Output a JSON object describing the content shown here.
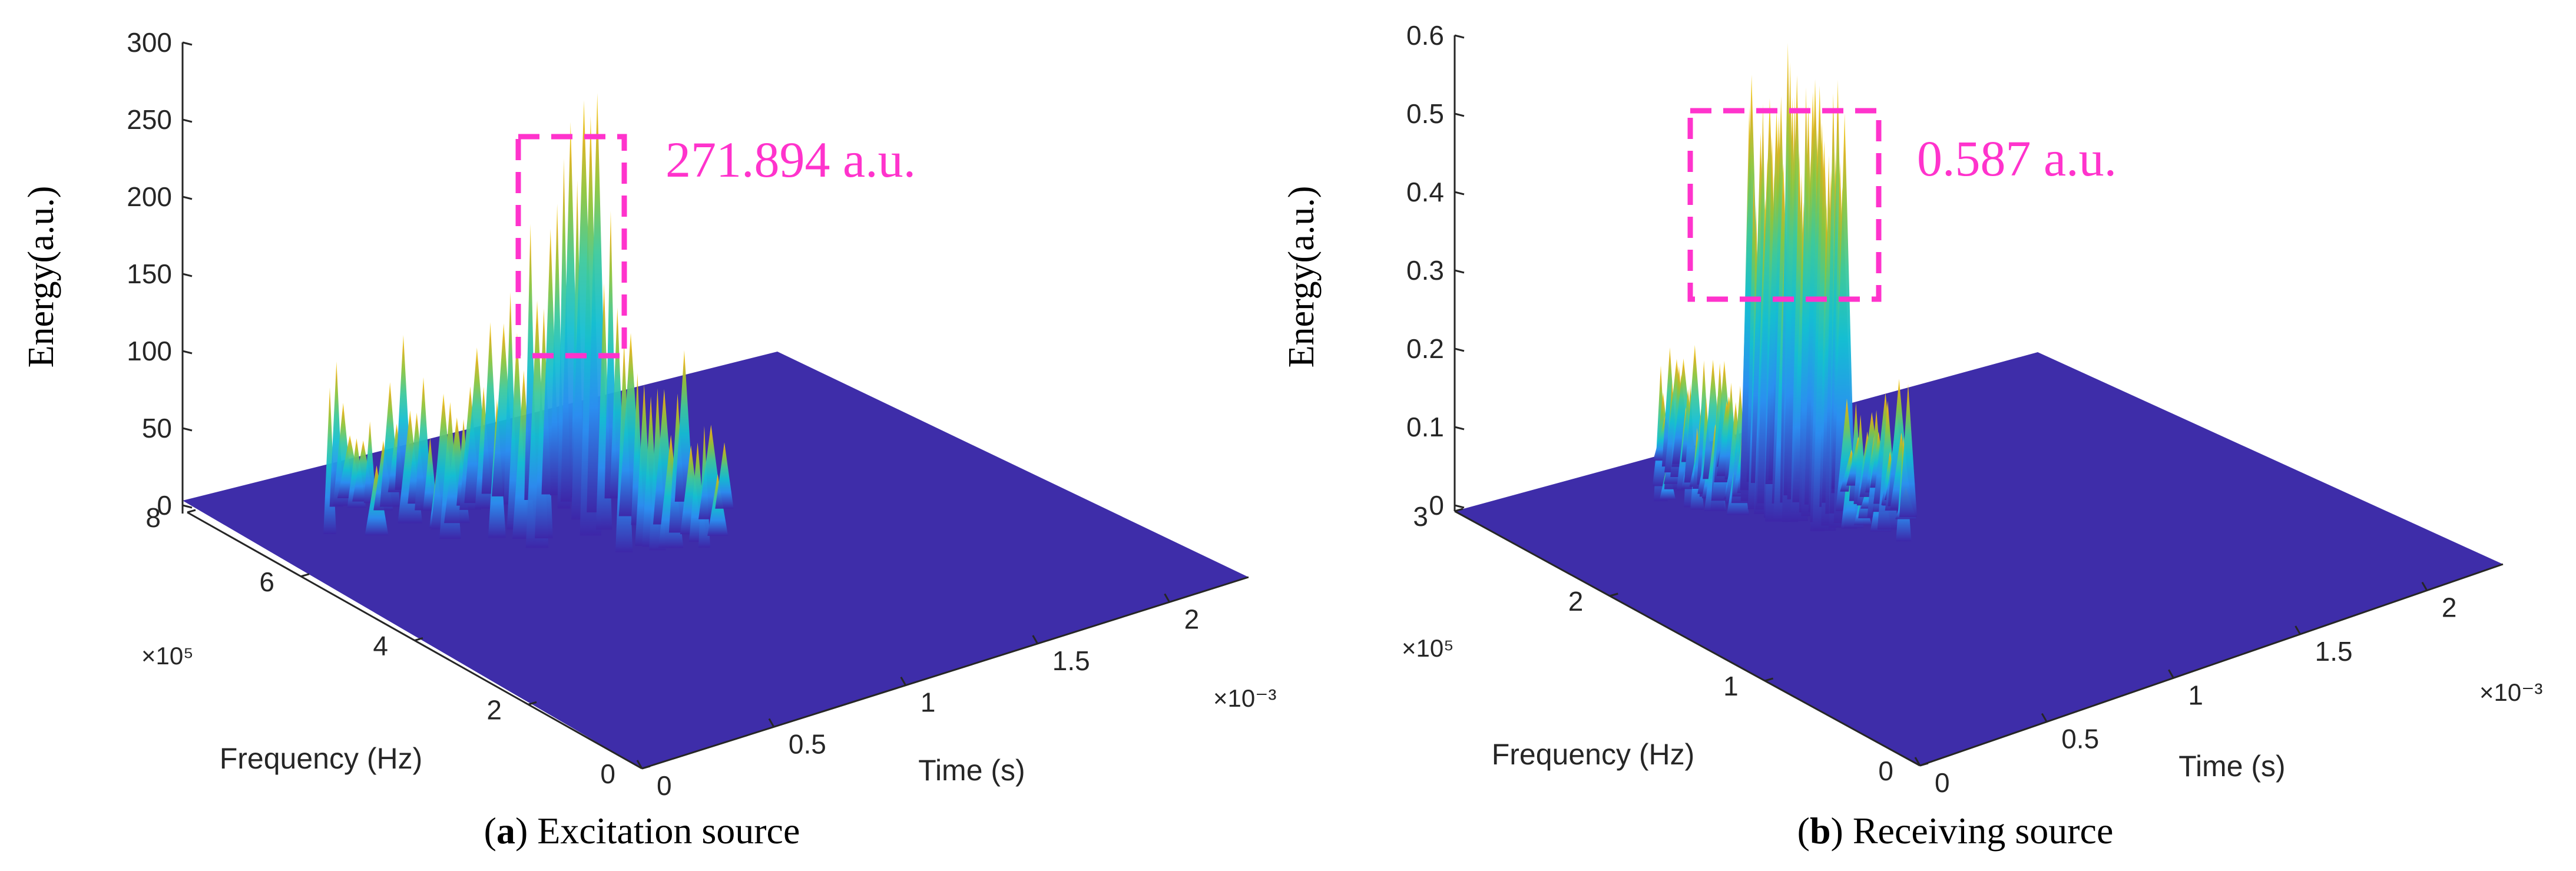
{
  "chart_data": [
    {
      "type": "surface3d",
      "panel_label": "a",
      "caption": "Excitation source",
      "zlabel": "Energy(a.u.)",
      "xlabel": "Time (s)",
      "ylabel": "Frequency (Hz)",
      "x_exponent": "×10⁻³",
      "y_exponent": "×10⁵",
      "x_ticks": [
        "0",
        "0.5",
        "1",
        "1.5",
        "2"
      ],
      "y_ticks": [
        "0",
        "2",
        "4",
        "6",
        "8"
      ],
      "z_ticks": [
        "0",
        "50",
        "100",
        "150",
        "200",
        "250",
        "300"
      ],
      "xlim": [
        0,
        2.3
      ],
      "ylim": [
        0,
        8
      ],
      "zlim": [
        0,
        300
      ],
      "peak_annotation": "271.894 a.u.",
      "peak_value": 271.894,
      "annotation_color": "#ff33cc",
      "colormap": [
        "#3d26a8",
        "#2b8ef0",
        "#14bed2",
        "#3dc99b",
        "#8dc53c",
        "#d8b21c",
        "#f9d626"
      ]
    },
    {
      "type": "surface3d",
      "panel_label": "b",
      "caption": "Receiving source",
      "zlabel": "Energy(a.u.)",
      "xlabel": "Time (s)",
      "ylabel": "Frequency (Hz)",
      "x_exponent": "×10⁻³",
      "y_exponent": "×10⁵",
      "x_ticks": [
        "0",
        "0.5",
        "1",
        "1.5",
        "2"
      ],
      "y_ticks": [
        "0",
        "1",
        "2",
        "3"
      ],
      "z_ticks": [
        "0",
        "0.1",
        "0.2",
        "0.3",
        "0.4",
        "0.5",
        "0.6"
      ],
      "xlim": [
        0,
        2.3
      ],
      "ylim": [
        0,
        3
      ],
      "zlim": [
        0,
        0.6
      ],
      "peak_annotation": "0.587 a.u.",
      "peak_value": 0.587,
      "annotation_color": "#ff33cc",
      "colormap": [
        "#3d26a8",
        "#2b8ef0",
        "#14bed2",
        "#3dc99b",
        "#8dc53c",
        "#d8b21c",
        "#f9d626"
      ]
    }
  ]
}
